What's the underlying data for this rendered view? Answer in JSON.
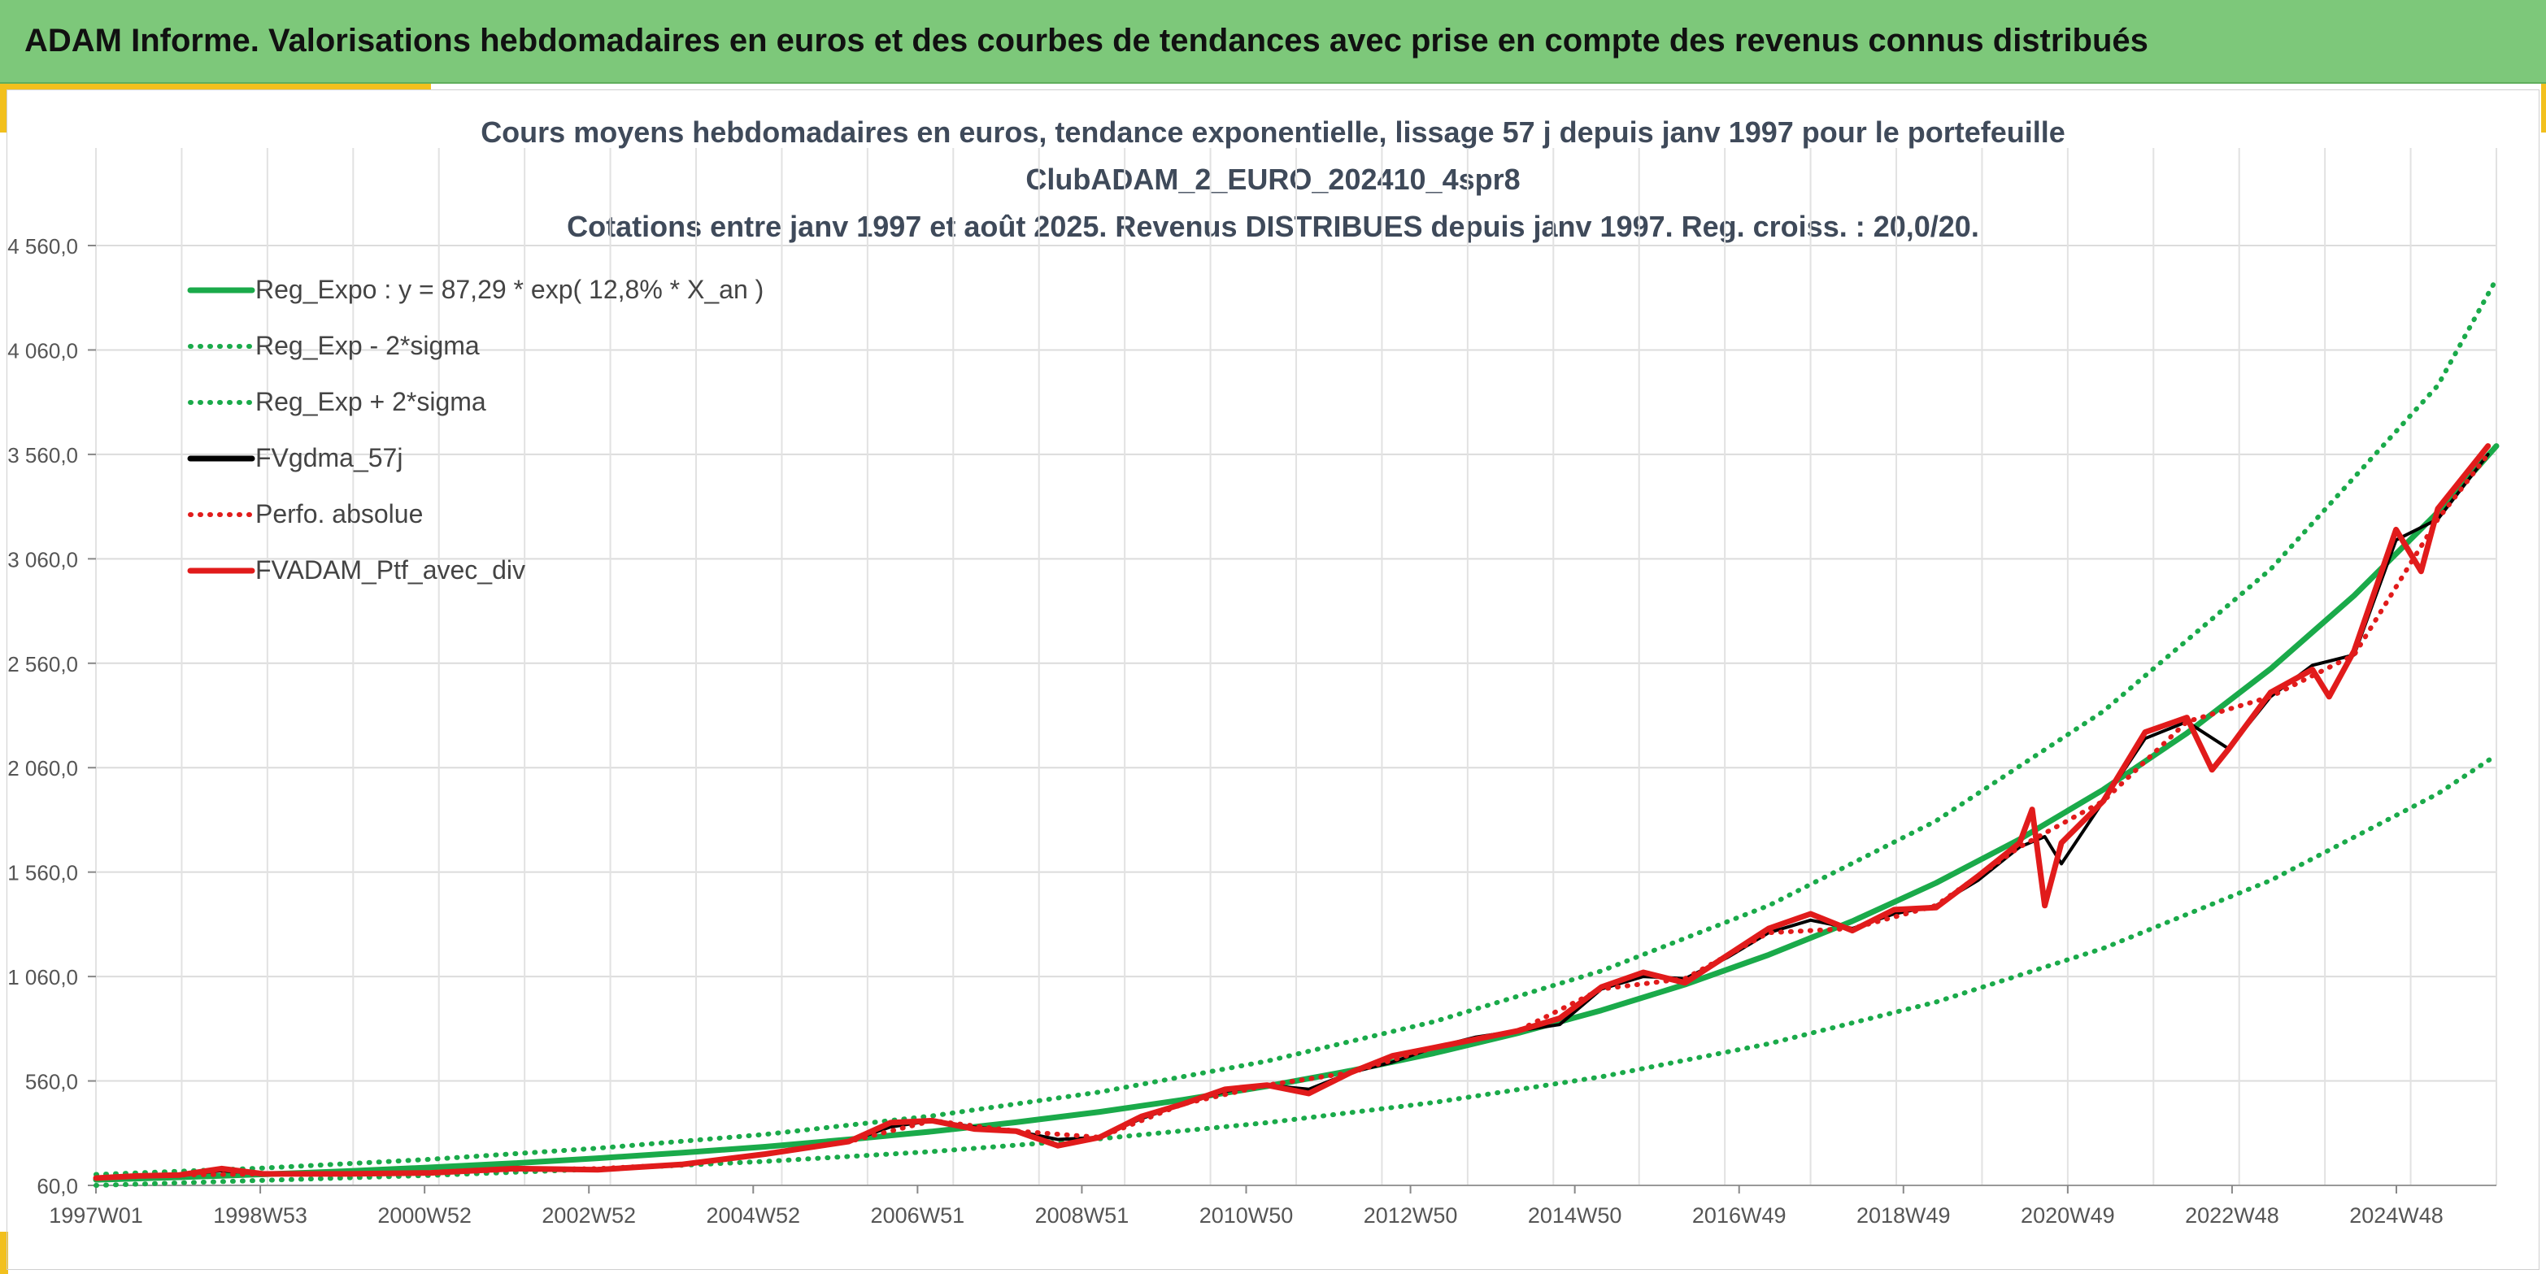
{
  "banner": {
    "title": "ADAM Informe. Valorisations hebdomadaires en euros et des courbes de tendances avec prise en compte des revenus connus distribués"
  },
  "chart_data": {
    "type": "line",
    "title_lines": [
      "Cours moyens hebdomadaires en euros, tendance exponentielle, lissage 57 j depuis janv 1997 pour le portefeuille",
      "ClubADAM_2_EURO_202410_4spr8",
      "Cotations entre janv 1997 et août 2025. Revenus DISTRIBUES depuis janv 1997. Reg. croiss. : 20,0/20."
    ],
    "xlabel": "",
    "ylabel": "",
    "x_tick_labels": [
      "1997W01",
      "1998W53",
      "2000W52",
      "2002W52",
      "2004W52",
      "2006W51",
      "2008W51",
      "2010W50",
      "2012W50",
      "2014W50",
      "2016W49",
      "2018W49",
      "2020W49",
      "2022W48",
      "2024W48"
    ],
    "y_tick_labels": [
      "60,0",
      "560,0",
      "1 060,0",
      "1 560,0",
      "2 060,0",
      "2 560,0",
      "3 060,0",
      "3 560,0",
      "4 060,0",
      "4 560,0"
    ],
    "ylim": [
      60,
      4560
    ],
    "xlim": [
      1997.0,
      2025.7
    ],
    "grid": true,
    "legend_position": "top-left",
    "series": [
      {
        "name": "Reg_Expo : y = 87,29 * exp( 12,8% *  X_an )",
        "color": "#1aaa4a",
        "style": "solid",
        "x": [
          1997,
          1998,
          1999,
          2000,
          2001,
          2002,
          2003,
          2004,
          2005,
          2006,
          2007,
          2008,
          2009,
          2010,
          2011,
          2012,
          2013,
          2014,
          2015,
          2016,
          2017,
          2018,
          2019,
          2020,
          2021,
          2022,
          2023,
          2024,
          2025,
          2025.7
        ],
        "values": [
          87,
          99,
          113,
          128,
          146,
          166,
          190,
          216,
          245,
          280,
          318,
          362,
          412,
          470,
          535,
          609,
          693,
          789,
          898,
          1022,
          1164,
          1325,
          1508,
          1717,
          1955,
          2225,
          2533,
          2884,
          3283,
          3600
        ]
      },
      {
        "name": "Reg_Exp - 2*sigma",
        "color": "#1aaa4a",
        "style": "dotted",
        "x": [
          1997,
          1999,
          2001,
          2003,
          2005,
          2007,
          2009,
          2011,
          2013,
          2015,
          2017,
          2019,
          2021,
          2023,
          2025,
          2025.7
        ],
        "values": [
          60,
          84,
          108,
          138,
          175,
          222,
          283,
          360,
          457,
          580,
          738,
          938,
          1195,
          1520,
          1935,
          2120
        ]
      },
      {
        "name": "Reg_Exp + 2*sigma",
        "color": "#1aaa4a",
        "style": "dotted",
        "x": [
          1997,
          1999,
          2001,
          2003,
          2005,
          2007,
          2009,
          2011,
          2013,
          2015,
          2017,
          2019,
          2021,
          2023,
          2025,
          2025.7
        ],
        "values": [
          112,
          143,
          185,
          238,
          304,
          393,
          507,
          655,
          844,
          1087,
          1400,
          1805,
          2330,
          3010,
          3890,
          4400
        ]
      },
      {
        "name": "FVgdma_57j",
        "color": "#000000",
        "style": "solid",
        "x": [
          1997,
          1997.5,
          1998,
          1998.5,
          1999,
          2000,
          2001,
          2002,
          2003,
          2004,
          2005,
          2006,
          2006.5,
          2007,
          2007.5,
          2008,
          2008.5,
          2009,
          2009.5,
          2010,
          2010.5,
          2011,
          2011.5,
          2012,
          2012.5,
          2013,
          2013.5,
          2014,
          2014.5,
          2015,
          2015.5,
          2016,
          2016.5,
          2017,
          2017.5,
          2018,
          2018.5,
          2019,
          2019.5,
          2020,
          2020.3,
          2020.5,
          2021,
          2021.5,
          2022,
          2022.5,
          2023,
          2023.5,
          2024,
          2024.5,
          2025,
          2025.6
        ],
        "values": [
          95,
          105,
          110,
          130,
          115,
          115,
          120,
          135,
          140,
          160,
          210,
          270,
          340,
          370,
          340,
          320,
          280,
          290,
          380,
          450,
          510,
          540,
          520,
          600,
          650,
          720,
          770,
          800,
          830,
          1000,
          1060,
          1050,
          1150,
          1270,
          1330,
          1290,
          1360,
          1400,
          1520,
          1680,
          1730,
          1600,
          1900,
          2200,
          2280,
          2150,
          2400,
          2550,
          2600,
          3150,
          3250,
          3560
        ]
      },
      {
        "name": "Perfo. absolue",
        "color": "#e11b1b",
        "style": "dotted",
        "x": [
          1997,
          1998,
          1999,
          2000,
          2001,
          2002,
          2003,
          2004,
          2005,
          2006,
          2007,
          2008,
          2009,
          2010,
          2011,
          2012,
          2013,
          2014,
          2015,
          2016,
          2017,
          2018,
          2019,
          2020,
          2021,
          2022,
          2023,
          2024,
          2025,
          2025.6
        ],
        "values": [
          95,
          110,
          115,
          115,
          120,
          135,
          140,
          160,
          210,
          270,
          370,
          320,
          290,
          450,
          540,
          600,
          720,
          800,
          1000,
          1050,
          1270,
          1290,
          1400,
          1680,
          1900,
          2280,
          2400,
          2600,
          3250,
          3560
        ]
      },
      {
        "name": "FVADAM_Ptf_avec_div",
        "color": "#e11b1b",
        "style": "solid-thick",
        "x": [
          1997,
          1997.5,
          1998,
          1998.5,
          1999,
          2000,
          2001,
          2002,
          2003,
          2004,
          2005,
          2006,
          2006.5,
          2007,
          2007.5,
          2008,
          2008.5,
          2009,
          2009.5,
          2010,
          2010.5,
          2011,
          2011.5,
          2012,
          2012.5,
          2013,
          2013.5,
          2014,
          2014.5,
          2015,
          2015.5,
          2016,
          2016.5,
          2017,
          2017.5,
          2018,
          2018.5,
          2019,
          2019.5,
          2020,
          2020.15,
          2020.3,
          2020.5,
          2021,
          2021.5,
          2022,
          2022.3,
          2022.5,
          2023,
          2023.5,
          2023.7,
          2024,
          2024.5,
          2024.8,
          2025,
          2025.6
        ],
        "values": [
          95,
          105,
          110,
          140,
          115,
          115,
          120,
          140,
          135,
          160,
          210,
          270,
          360,
          370,
          330,
          320,
          250,
          290,
          390,
          450,
          520,
          540,
          500,
          600,
          680,
          720,
          760,
          800,
          860,
          1010,
          1080,
          1030,
          1160,
          1290,
          1360,
          1280,
          1380,
          1390,
          1540,
          1700,
          1860,
          1400,
          1700,
          1900,
          2230,
          2300,
          2050,
          2150,
          2420,
          2530,
          2400,
          2620,
          3200,
          3000,
          3300,
          3600
        ]
      }
    ]
  }
}
